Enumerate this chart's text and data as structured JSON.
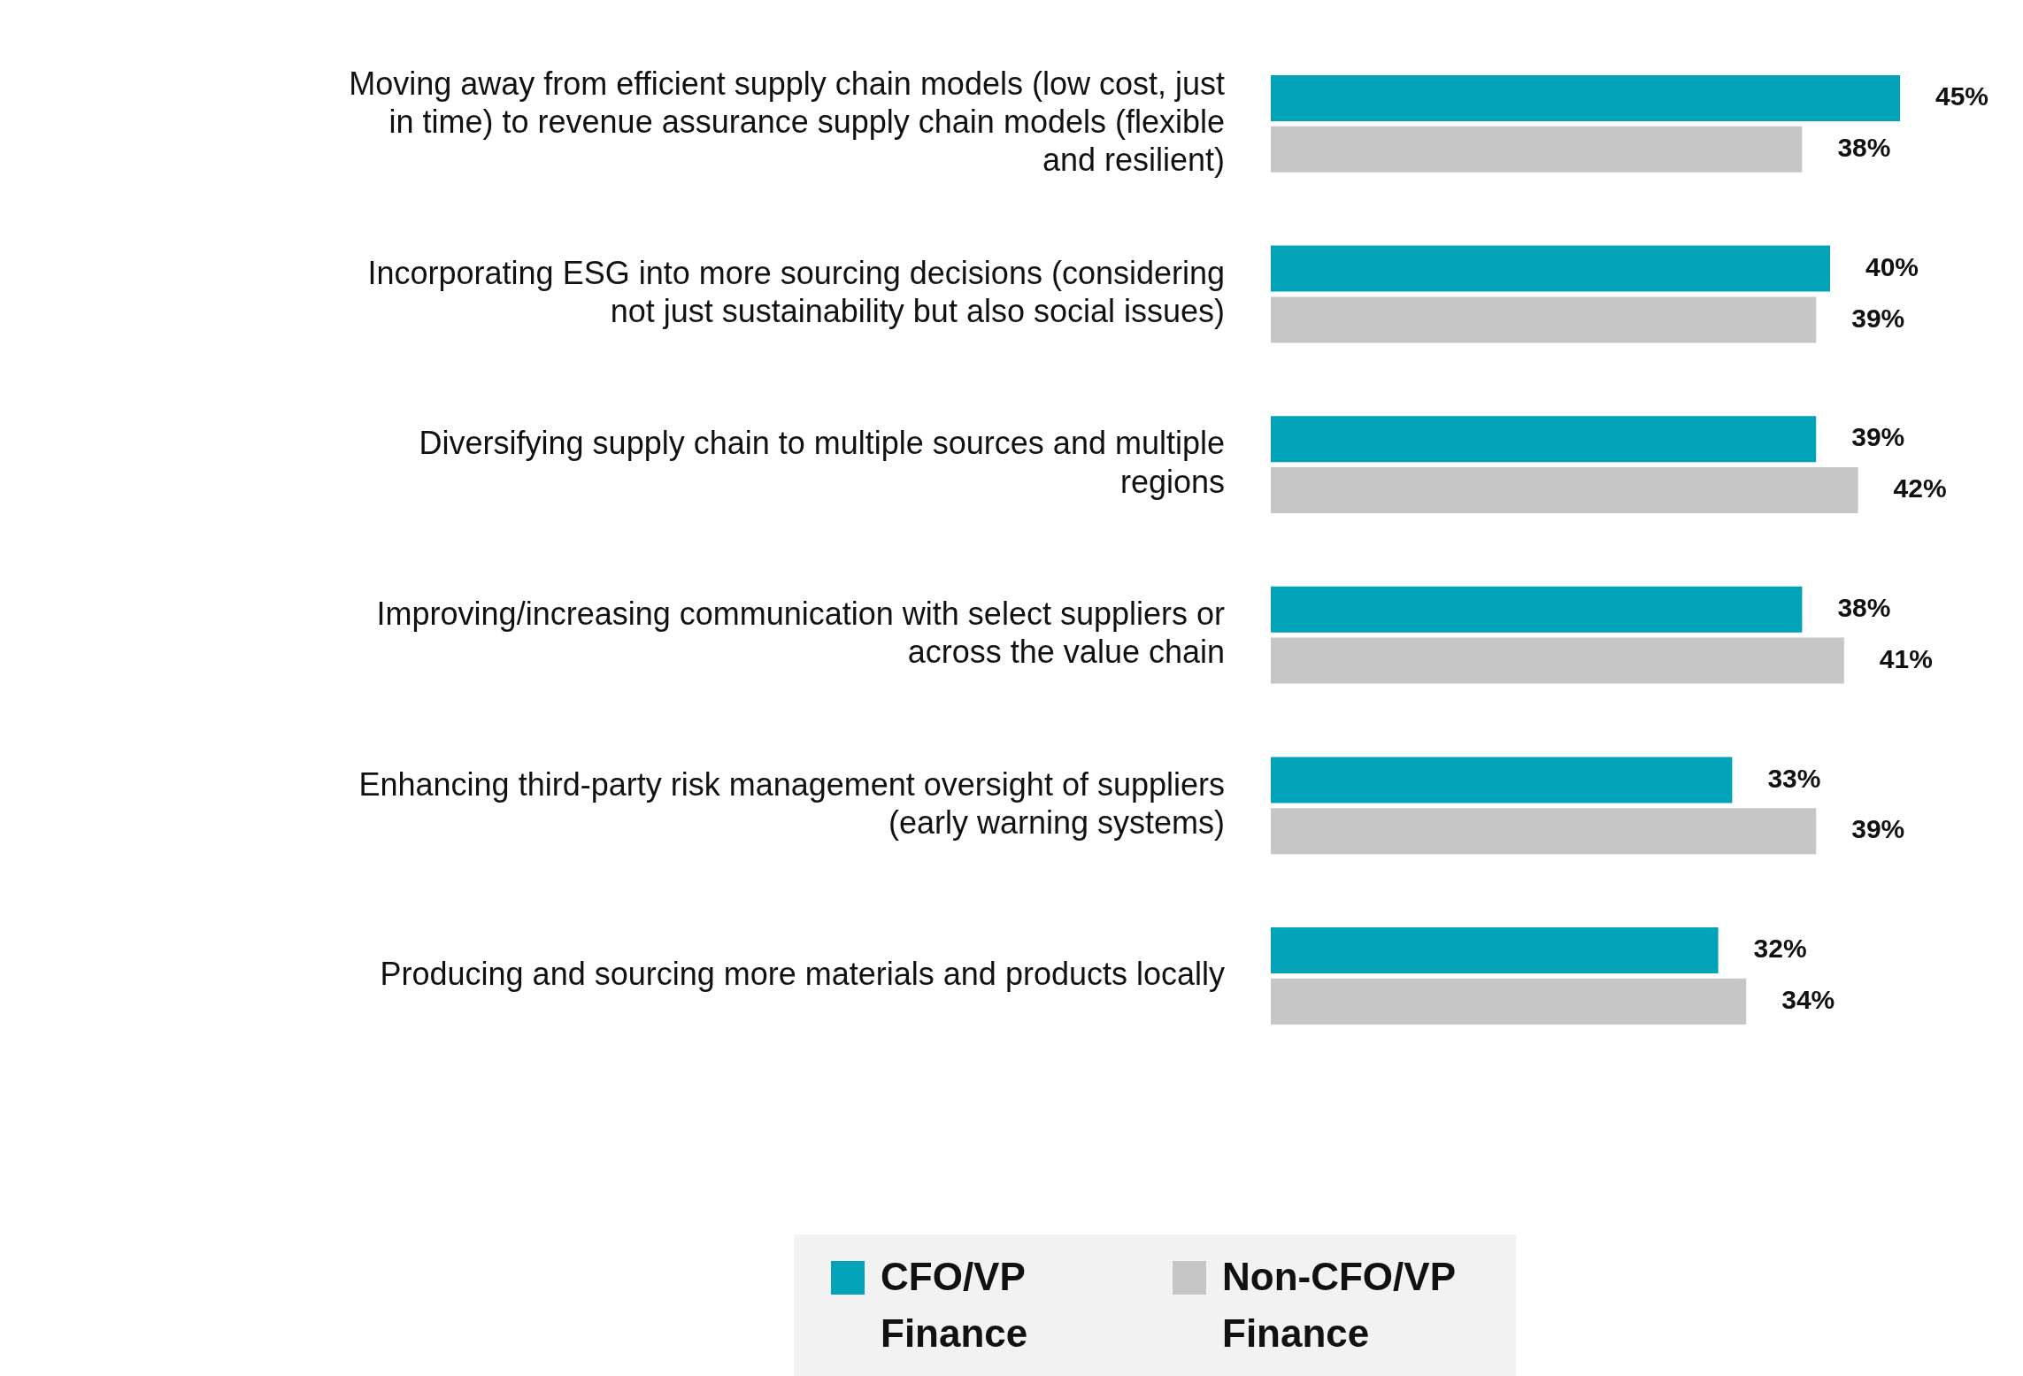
{
  "chart_data": {
    "type": "bar",
    "orientation": "horizontal",
    "categories": [
      "Moving away from efficient supply chain models (low cost, just in time) to revenue assurance supply chain models (flexible and resilient)",
      "Incorporating ESG into more sourcing decisions (considering not just sustainability but also social issues)",
      "Diversifying supply chain to multiple sources and multiple regions",
      "Improving/increasing communication with select suppliers or across the value chain",
      "Enhancing third-party risk management oversight of suppliers (early warning systems)",
      "Producing and sourcing more materials and products locally"
    ],
    "series": [
      {
        "name": "CFO/VP Finance",
        "color": "#00a3b8",
        "values": [
          45,
          40,
          39,
          38,
          33,
          32
        ],
        "value_labels": [
          "45%",
          "40%",
          "39%",
          "38%",
          "33%",
          "32%"
        ]
      },
      {
        "name": "Non-CFO/VP Finance",
        "color": "#c6c6c6",
        "values": [
          38,
          39,
          42,
          41,
          39,
          34
        ],
        "value_labels": [
          "38%",
          "39%",
          "42%",
          "41%",
          "39%",
          "34%"
        ]
      }
    ],
    "legend": "bottom"
  }
}
